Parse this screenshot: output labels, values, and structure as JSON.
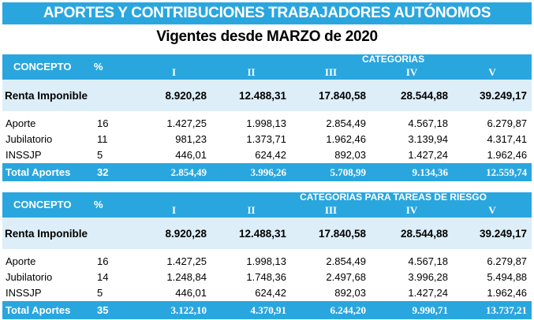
{
  "title": "APORTES Y CONTRIBUCIONES TRABAJADORES AUTÓNOMOS",
  "subtitle": "Vigentes desde MARZO de 2020",
  "columns_roman": [
    "I",
    "II",
    "III",
    "IV",
    "V"
  ],
  "concept_header": "CONCEPTO",
  "pct_header": "%",
  "tables": [
    {
      "categories_header": "CATEGORIAS",
      "renta": {
        "label": "Renta Imponible",
        "values": [
          "8.920,28",
          "12.488,31",
          "17.840,58",
          "28.544,88",
          "39.249,17"
        ]
      },
      "rows": [
        {
          "label": "Aporte",
          "pct": "16",
          "values": [
            "1.427,25",
            "1.998,13",
            "2.854,49",
            "4.567,18",
            "6.279,87"
          ]
        },
        {
          "label": "Jubilatorio",
          "pct": "11",
          "values": [
            "981,23",
            "1.373,71",
            "1.962,46",
            "3.139,94",
            "4.317,41"
          ]
        },
        {
          "label": "INSSJP",
          "pct": "5",
          "values": [
            "446,01",
            "624,42",
            "892,03",
            "1.427,24",
            "1.962,46"
          ]
        }
      ],
      "total": {
        "label": "Total Aportes",
        "pct": "32",
        "values": [
          "2.854,49",
          "3.996,26",
          "5.708,99",
          "9.134,36",
          "12.559,74"
        ]
      }
    },
    {
      "categories_header": "CATEGORIAS PARA TAREAS DE RIESGO",
      "renta": {
        "label": "Renta Imponible",
        "values": [
          "8.920,28",
          "12.488,31",
          "17.840,58",
          "28.544,88",
          "39.249,17"
        ]
      },
      "rows": [
        {
          "label": "Aporte",
          "pct": "16",
          "values": [
            "1.427,25",
            "1.998,13",
            "2.854,49",
            "4.567,18",
            "6.279,87"
          ]
        },
        {
          "label": "Jubilatorio",
          "pct": "14",
          "values": [
            "1.248,84",
            "1.748,36",
            "2.497,68",
            "3.996,28",
            "5.494,88"
          ]
        },
        {
          "label": "INSSJP",
          "pct": "5",
          "values": [
            "446,01",
            "624,42",
            "892,03",
            "1.427,24",
            "1.962,46"
          ]
        }
      ],
      "total": {
        "label": "Total Aportes",
        "pct": "35",
        "values": [
          "3.122,10",
          "4.370,91",
          "6.244,20",
          "9.990,71",
          "13.737,21"
        ]
      }
    }
  ]
}
